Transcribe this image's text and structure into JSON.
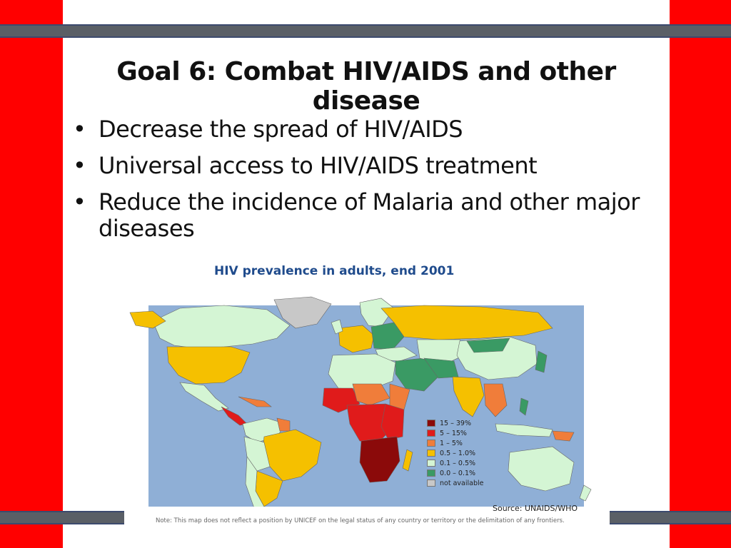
{
  "slide": {
    "title": "Goal 6: Combat HIV/AIDS and other disease",
    "bullets": [
      "Decrease the spread of HIV/AIDS",
      "Universal access to HIV/AIDS treatment",
      "Reduce the incidence of Malaria and other major diseases"
    ],
    "bullet_glyph": "•"
  },
  "map": {
    "title": "HIV prevalence in adults, end 2001",
    "legend": [
      {
        "label": "15 – 39%",
        "color": "#8b0a0a"
      },
      {
        "label": "5 – 15%",
        "color": "#e01b1b"
      },
      {
        "label": "1 – 5%",
        "color": "#f07d3a"
      },
      {
        "label": "0.5 – 1.0%",
        "color": "#f5c000"
      },
      {
        "label": "0.1 – 0.5%",
        "color": "#d4f5d4"
      },
      {
        "label": "0.0 – 0.1%",
        "color": "#3a9a64"
      },
      {
        "label": "not available",
        "color": "#c8c8c8"
      }
    ],
    "source": "Source: UNAIDS/WHO",
    "note": "Note: This map does not reflect a position by UNICEF on the legal status of any country or territory or the delimitation of any frontiers.",
    "ocean_color": "#8fafd6"
  },
  "colors": {
    "side_bar": "#ff0000",
    "divider": "#5a5f66"
  }
}
